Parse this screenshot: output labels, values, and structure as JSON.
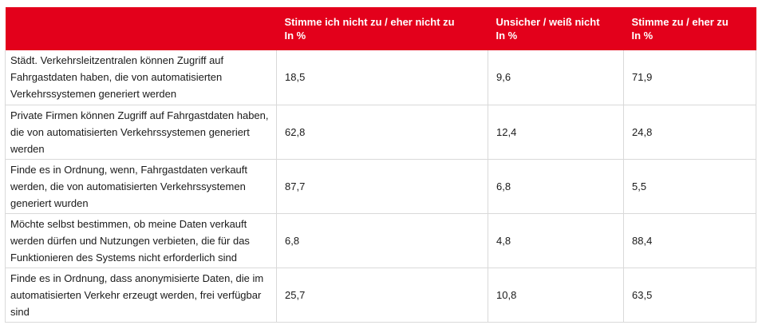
{
  "chart_data": {
    "type": "table",
    "columns": [
      "",
      "Stimme ich nicht zu / eher nicht zu\nIn %",
      "Unsicher / weiß nicht\nIn %",
      "Stimme zu / eher zu\nIn %"
    ],
    "rows": [
      {
        "statement": "Städt. Verkehrsleitzentralen können Zugriff auf Fahrgastdaten haben, die von automatisierten Verkehrssystemen generiert werden",
        "values": [
          "18,5",
          "9,6",
          "71,9"
        ]
      },
      {
        "statement": "Private Firmen können Zugriff auf Fahrgastdaten haben, die von automatisierten Verkehrssystemen generiert werden",
        "values": [
          "62,8",
          "12,4",
          "24,8"
        ]
      },
      {
        "statement": "Finde es in Ordnung, wenn, Fahrgastdaten verkauft werden, die von automatisierten Verkehrssystemen generiert wurden",
        "values": [
          "87,7",
          "6,8",
          "5,5"
        ]
      },
      {
        "statement": "Möchte selbst bestimmen, ob meine Daten verkauft werden dürfen und Nutzungen verbieten, die für das Funktionieren des Systems nicht erforderlich sind",
        "values": [
          "6,8",
          "4,8",
          "88,4"
        ]
      },
      {
        "statement": "Finde es in Ordnung, dass anonymisierte Daten, die im automatisierten Verkehr erzeugt werden, frei verfügbar sind",
        "values": [
          "25,7",
          "10,8",
          "63,5"
        ]
      }
    ]
  },
  "colors": {
    "header_background": "#e3001b",
    "header_text": "#ffffff",
    "grid_line": "#d9d9d9"
  }
}
